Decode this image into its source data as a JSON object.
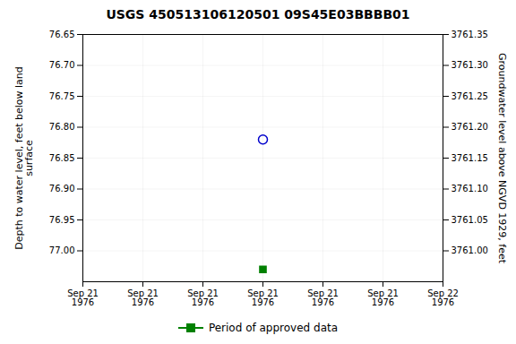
{
  "chart_data": {
    "type": "scatter",
    "title": "USGS 450513106120501 09S45E03BBBB01",
    "ylabel": "Depth to water level, feet below land\nsurface",
    "y2label": "Groundwater level above NGVD 1929, feet",
    "categories": [
      "Sep 21\n1976",
      "Sep 21\n1976",
      "Sep 21\n1976",
      "Sep 21\n1976",
      "Sep 21\n1976",
      "Sep 21\n1976",
      "Sep 22\n1976"
    ],
    "series": [
      {
        "color": "#0000cc",
        "marker": "circle",
        "values": [
          null,
          null,
          null,
          76.82,
          null,
          null,
          null
        ]
      },
      {
        "name": "Period of approved data",
        "color": "#008000",
        "marker": "square",
        "values": [
          null,
          null,
          null,
          77.03,
          null,
          null,
          null
        ]
      }
    ],
    "ylim": [
      77.05,
      76.65
    ],
    "yticks": [
      76.65,
      {
        "value": 76.7,
        "label": "76.70"
      },
      76.75,
      {
        "value": 76.8,
        "label": "76.80"
      },
      76.85,
      {
        "value": 76.9,
        "label": "76.90"
      },
      76.95,
      {
        "value": 77.0,
        "label": "77.00"
      }
    ],
    "y2lim": [
      3760.95,
      3761.35
    ],
    "y2ticks": [
      3761.35,
      {
        "value": 3761.3,
        "label": "3761.30"
      },
      3761.25,
      {
        "value": 3761.2,
        "label": "3761.20"
      },
      3761.15,
      {
        "value": 3761.1,
        "label": "3761.10"
      },
      3761.05,
      {
        "value": 3761.0,
        "label": "3761.00"
      }
    ],
    "grid": true,
    "legend": "bottom"
  }
}
